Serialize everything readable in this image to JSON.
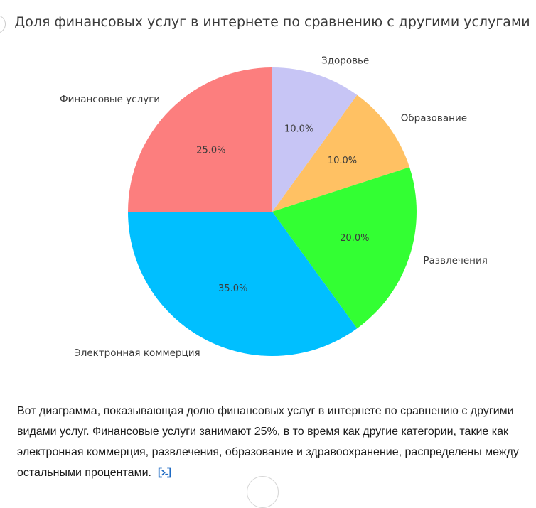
{
  "chart_data": {
    "type": "pie",
    "title": "Доля финансовых услуг в интернете по сравнению с другими услугами",
    "categories": [
      "Здоровье",
      "Образование",
      "Развлечения",
      "Электронная коммерция",
      "Финансовые услуги"
    ],
    "values": [
      10,
      10,
      20,
      35,
      25
    ],
    "percent_labels": [
      "10.0%",
      "10.0%",
      "20.0%",
      "35.0%",
      "25.0%"
    ],
    "colors": [
      "#C7C5F5",
      "#FFC163",
      "#33FF33",
      "#00BFFF",
      "#FC7E7E"
    ],
    "start_angle": "top",
    "direction": "clockwise",
    "label_distance": 1.1,
    "pct_distance": 0.6,
    "text_color": "#3b3b3b",
    "legend": "none"
  },
  "answer": {
    "text": "Вот диаграмма, показывающая долю финансовых услуг в интернете по сравнению с другими видами услуг. Финансовые услуги занимают 25%, в то время как другие категории, такие как электронная коммерция, развлечения, образование и здравоохранение, распределены между остальными процентами.",
    "badge_color": "#1f6bc4"
  }
}
